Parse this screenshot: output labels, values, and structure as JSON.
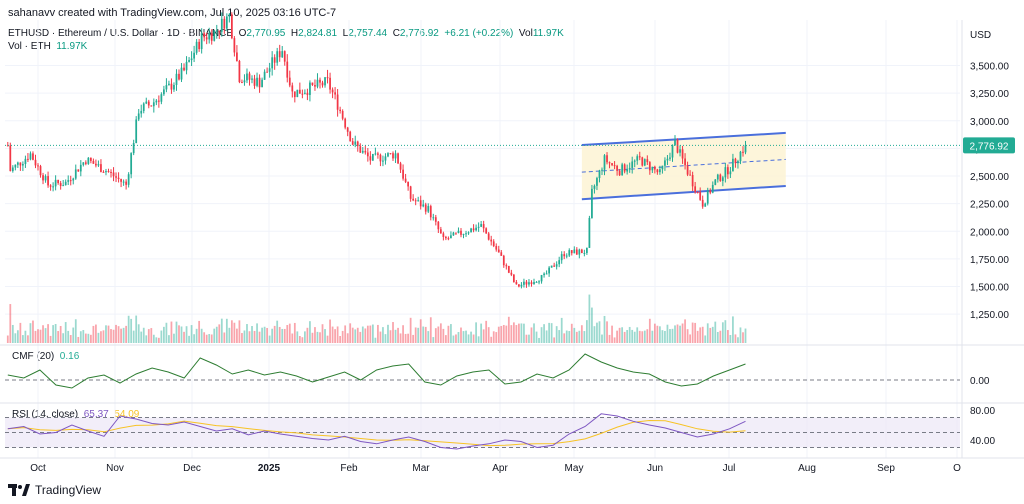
{
  "header": {
    "credit": "sahanavv created with TradingView.com, Jul 10, 2025 03:16 UTC-7"
  },
  "symbol": {
    "name": "ETHUSD · Ethereum / U.S. Dollar · 1D · BINANCE",
    "o_label": "O",
    "o": "2,770.95",
    "h_label": "H",
    "h": "2,824.81",
    "l_label": "L",
    "l": "2,757.44",
    "c_label": "C",
    "c": "2,776.92",
    "change": "+6.21 (+0.22%)",
    "vol_label": "Vol",
    "vol": "11.97K"
  },
  "volume_legend": {
    "label": "Vol · ETH",
    "value": "11.97K"
  },
  "cmf_legend": {
    "label": "CMF (20)",
    "value": "0.16"
  },
  "rsi_legend": {
    "label": "RSI (14, close)",
    "value1": "65.37",
    "value2": "54.09"
  },
  "footer": {
    "brand": "TradingView"
  },
  "colors": {
    "up": "#22ab94",
    "down": "#f23645",
    "channel": "#4a6fdc",
    "channel_fill": "#fdf3d3",
    "cmf": "#2e7d32",
    "rsi": "#7e57c2",
    "rsi_ma": "#f7c325"
  },
  "chart_data": {
    "type": "candlestick",
    "currency": "USD",
    "last_price": 2776.92,
    "last_price_label": "2,776.92",
    "price_axis": {
      "ticks": [
        1250,
        1500,
        1750,
        2000,
        2250,
        2500,
        2750,
        3000,
        3250,
        3500
      ],
      "tick_labels": [
        "1,250.00",
        "1,500.00",
        "1,750.00",
        "2,000.00",
        "2,250.00",
        "2,500.00",
        "2,750.00",
        "3,000.00",
        "3,250.00",
        "3,500.00"
      ]
    },
    "x_axis": {
      "labels": [
        "Oct",
        "Nov",
        "Dec",
        "2025",
        "Feb",
        "Mar",
        "Apr",
        "May",
        "Jun",
        "Jul",
        "Aug",
        "Sep",
        "O"
      ]
    },
    "close_path": [
      [
        "2024-09-20",
        2550
      ],
      [
        "2024-09-28",
        2700
      ],
      [
        "2024-10-05",
        2420
      ],
      [
        "2024-10-12",
        2440
      ],
      [
        "2024-10-20",
        2650
      ],
      [
        "2024-10-28",
        2550
      ],
      [
        "2024-11-05",
        2420
      ],
      [
        "2024-11-10",
        3100
      ],
      [
        "2024-11-15",
        3150
      ],
      [
        "2024-11-22",
        3300
      ],
      [
        "2024-11-28",
        3450
      ],
      [
        "2024-12-05",
        3750
      ],
      [
        "2024-12-10",
        3800
      ],
      [
        "2024-12-16",
        3950
      ],
      [
        "2024-12-20",
        3400
      ],
      [
        "2024-12-28",
        3350
      ],
      [
        "2025-01-06",
        3650
      ],
      [
        "2025-01-10",
        3250
      ],
      [
        "2025-01-18",
        3300
      ],
      [
        "2025-01-24",
        3350
      ],
      [
        "2025-01-28",
        3150
      ],
      [
        "2025-02-03",
        2800
      ],
      [
        "2025-02-10",
        2650
      ],
      [
        "2025-02-20",
        2700
      ],
      [
        "2025-02-26",
        2300
      ],
      [
        "2025-03-05",
        2200
      ],
      [
        "2025-03-11",
        1920
      ],
      [
        "2025-03-20",
        2000
      ],
      [
        "2025-03-26",
        2050
      ],
      [
        "2025-04-02",
        1800
      ],
      [
        "2025-04-09",
        1500
      ],
      [
        "2025-04-20",
        1590
      ],
      [
        "2025-04-28",
        1800
      ],
      [
        "2025-05-07",
        1820
      ],
      [
        "2025-05-09",
        2350
      ],
      [
        "2025-05-14",
        2650
      ],
      [
        "2025-05-20",
        2550
      ],
      [
        "2025-05-28",
        2650
      ],
      [
        "2025-06-05",
        2520
      ],
      [
        "2025-06-11",
        2800
      ],
      [
        "2025-06-16",
        2540
      ],
      [
        "2025-06-22",
        2250
      ],
      [
        "2025-06-27",
        2450
      ],
      [
        "2025-07-03",
        2580
      ],
      [
        "2025-07-09",
        2776.92
      ]
    ],
    "channel": {
      "upper": [
        [
          "2025-05-05",
          2780
        ],
        [
          "2025-07-25",
          2890
        ]
      ],
      "lower": [
        [
          "2025-05-05",
          2290
        ],
        [
          "2025-07-25",
          2410
        ]
      ],
      "mid": [
        [
          "2025-05-05",
          2535
        ],
        [
          "2025-07-25",
          2650
        ]
      ]
    },
    "cmf": {
      "label": "CMF (20)",
      "last": 0.16,
      "tick_labels": [
        "0.00"
      ],
      "values": [
        0.05,
        0.02,
        0.1,
        -0.05,
        -0.08,
        0.02,
        0.05,
        -0.03,
        0.06,
        0.12,
        0.08,
        0.02,
        0.22,
        0.15,
        0.06,
        0.1,
        0.05,
        0.08,
        0.04,
        -0.02,
        0.03,
        0.08,
        0.0,
        0.1,
        0.14,
        0.16,
        -0.02,
        -0.05,
        0.04,
        0.08,
        0.1,
        -0.04,
        -0.02,
        0.06,
        0.02,
        0.1,
        0.26,
        0.18,
        0.12,
        0.08,
        0.06,
        -0.02,
        -0.06,
        -0.04,
        0.04,
        0.1,
        0.16
      ]
    },
    "rsi": {
      "label": "RSI (14, close)",
      "last": 65.37,
      "ma_last": 54.09,
      "tick_labels": [
        "80.00",
        "40.00"
      ],
      "values": [
        55,
        58,
        48,
        50,
        60,
        52,
        45,
        72,
        68,
        62,
        60,
        64,
        58,
        52,
        55,
        47,
        52,
        48,
        45,
        42,
        40,
        45,
        38,
        35,
        40,
        44,
        38,
        30,
        28,
        32,
        35,
        40,
        38,
        30,
        33,
        48,
        58,
        75,
        72,
        65,
        60,
        56,
        50,
        44,
        48,
        55,
        65
      ]
    }
  }
}
